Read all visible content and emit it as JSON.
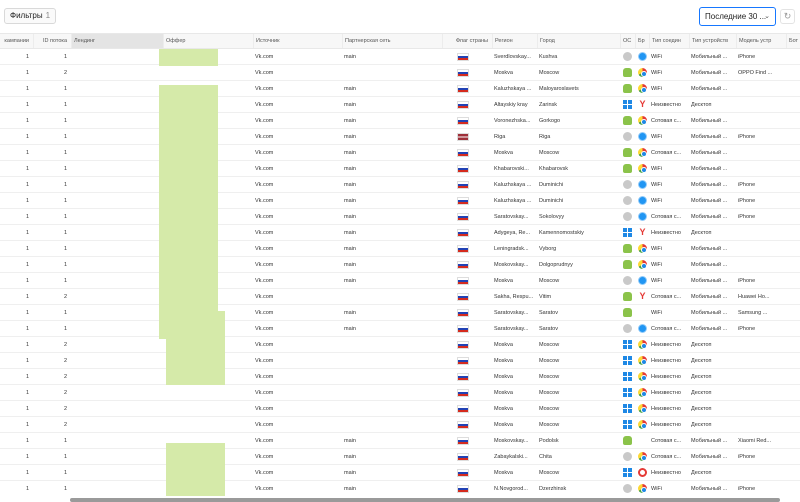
{
  "toolbar": {
    "filters_label": "Фильтры",
    "filters_count": "1",
    "period_value": "Последние 30 ...",
    "colors": {
      "accent": "#1677ff",
      "mask": "#d5eaa9"
    }
  },
  "columns": [
    "кампании",
    "ID потока",
    "Лендинг",
    "Оффер",
    "Источник",
    "Партнерская сеть",
    "Флаг страны",
    "Регион",
    "Город",
    "ОС",
    "Бр",
    "Тип соедин",
    "Тип устройств",
    "Модель устр",
    "Бот"
  ],
  "rows": [
    {
      "c1": "1",
      "c2": "1",
      "src": "Vk.com",
      "net": "main",
      "flag": "ru",
      "region": "Sverdlovskay...",
      "city": "Kushva",
      "os": "apple",
      "br": "safari",
      "conn": "WiFi",
      "dev": "Мобильный ...",
      "model": "iPhone"
    },
    {
      "c1": "1",
      "c2": "2",
      "src": "Vk.com",
      "net": "",
      "flag": "ru",
      "region": "Moskva",
      "city": "Moscow",
      "os": "android",
      "br": "chrome",
      "conn": "WiFi",
      "dev": "Мобильный ...",
      "model": "OPPO Find ..."
    },
    {
      "c1": "1",
      "c2": "1",
      "src": "Vk.com",
      "net": "main",
      "flag": "ru",
      "region": "Kaluzhskaya ...",
      "city": "Maloyaroslavets",
      "os": "android",
      "br": "chrome",
      "conn": "WiFi",
      "dev": "Мобильный ...",
      "model": ""
    },
    {
      "c1": "1",
      "c2": "1",
      "src": "Vk.com",
      "net": "main",
      "flag": "ru",
      "region": "Altayskiy kray",
      "city": "Zarinsk",
      "os": "windows",
      "br": "yandex",
      "conn": "Неизвестно",
      "dev": "Десктоп",
      "model": ""
    },
    {
      "c1": "1",
      "c2": "1",
      "src": "Vk.com",
      "net": "main",
      "flag": "ru",
      "region": "Voronezhska...",
      "city": "Gorkogo",
      "os": "android",
      "br": "chrome",
      "conn": "Сотовая с...",
      "dev": "Мобильный ...",
      "model": ""
    },
    {
      "c1": "1",
      "c2": "1",
      "src": "Vk.com",
      "net": "main",
      "flag": "lv",
      "region": "Riga",
      "city": "Riga",
      "os": "apple",
      "br": "safari",
      "conn": "WiFi",
      "dev": "Мобильный ...",
      "model": "iPhone"
    },
    {
      "c1": "1",
      "c2": "1",
      "src": "Vk.com",
      "net": "main",
      "flag": "ru",
      "region": "Moskva",
      "city": "Moscow",
      "os": "android",
      "br": "chrome",
      "conn": "Сотовая с...",
      "dev": "Мобильный ...",
      "model": ""
    },
    {
      "c1": "1",
      "c2": "1",
      "src": "Vk.com",
      "net": "main",
      "flag": "ru",
      "region": "Khabarovski...",
      "city": "Khabarovsk",
      "os": "android",
      "br": "chrome",
      "conn": "WiFi",
      "dev": "Мобильный ...",
      "model": ""
    },
    {
      "c1": "1",
      "c2": "1",
      "src": "Vk.com",
      "net": "main",
      "flag": "ru",
      "region": "Kaluzhskaya ...",
      "city": "Duminichi",
      "os": "apple",
      "br": "safari",
      "conn": "WiFi",
      "dev": "Мобильный ...",
      "model": "iPhone"
    },
    {
      "c1": "1",
      "c2": "1",
      "src": "Vk.com",
      "net": "main",
      "flag": "ru",
      "region": "Kaluzhskaya ...",
      "city": "Duminichi",
      "os": "apple",
      "br": "safari",
      "conn": "WiFi",
      "dev": "Мобильный ...",
      "model": "iPhone"
    },
    {
      "c1": "1",
      "c2": "1",
      "src": "Vk.com",
      "net": "main",
      "flag": "ru",
      "region": "Saratovskay...",
      "city": "Sokolovyy",
      "os": "apple",
      "br": "safari",
      "conn": "Сотовая с...",
      "dev": "Мобильный ...",
      "model": "iPhone"
    },
    {
      "c1": "1",
      "c2": "1",
      "src": "Vk.com",
      "net": "main",
      "flag": "ru",
      "region": "Adygeya, Re...",
      "city": "Kamennomostskiy",
      "os": "windows",
      "br": "yandex",
      "conn": "Неизвестно",
      "dev": "Десктоп",
      "model": ""
    },
    {
      "c1": "1",
      "c2": "1",
      "src": "Vk.com",
      "net": "main",
      "flag": "ru",
      "region": "Leningradsk...",
      "city": "Vyborg",
      "os": "android",
      "br": "chrome",
      "conn": "WiFi",
      "dev": "Мобильный ...",
      "model": ""
    },
    {
      "c1": "1",
      "c2": "1",
      "src": "Vk.com",
      "net": "main",
      "flag": "ru",
      "region": "Moskovskay...",
      "city": "Dolgoprudnyy",
      "os": "android",
      "br": "chrome",
      "conn": "WiFi",
      "dev": "Мобильный ...",
      "model": ""
    },
    {
      "c1": "1",
      "c2": "1",
      "src": "Vk.com",
      "net": "main",
      "flag": "ru",
      "region": "Moskva",
      "city": "Moscow",
      "os": "apple",
      "br": "safari",
      "conn": "WiFi",
      "dev": "Мобильный ...",
      "model": "iPhone"
    },
    {
      "c1": "1",
      "c2": "2",
      "src": "Vk.com",
      "net": "",
      "flag": "ru",
      "region": "Sakha, Respu...",
      "city": "Vitim",
      "os": "android",
      "br": "yandex",
      "conn": "Сотовая с...",
      "dev": "Мобильный ...",
      "model": "Huawei Ho..."
    },
    {
      "c1": "1",
      "c2": "1",
      "src": "Vk.com",
      "net": "main",
      "flag": "ru",
      "region": "Saratovskay...",
      "city": "Saratov",
      "os": "android",
      "br": "",
      "conn": "WiFi",
      "dev": "Мобильный ...",
      "model": "Samsung ..."
    },
    {
      "c1": "1",
      "c2": "1",
      "src": "Vk.com",
      "net": "main",
      "flag": "ru",
      "region": "Saratovskay...",
      "city": "Saratov",
      "os": "apple",
      "br": "safari",
      "conn": "Сотовая с...",
      "dev": "Мобильный ...",
      "model": "iPhone"
    },
    {
      "c1": "1",
      "c2": "2",
      "src": "Vk.com",
      "net": "",
      "flag": "ru",
      "region": "Moskva",
      "city": "Moscow",
      "os": "windows",
      "br": "chrome",
      "conn": "Неизвестно",
      "dev": "Десктоп",
      "model": ""
    },
    {
      "c1": "1",
      "c2": "2",
      "src": "Vk.com",
      "net": "",
      "flag": "ru",
      "region": "Moskva",
      "city": "Moscow",
      "os": "windows",
      "br": "chrome",
      "conn": "Неизвестно",
      "dev": "Десктоп",
      "model": ""
    },
    {
      "c1": "1",
      "c2": "2",
      "src": "Vk.com",
      "net": "",
      "flag": "ru",
      "region": "Moskva",
      "city": "Moscow",
      "os": "windows",
      "br": "chrome",
      "conn": "Неизвестно",
      "dev": "Десктоп",
      "model": ""
    },
    {
      "c1": "1",
      "c2": "2",
      "src": "Vk.com",
      "net": "",
      "flag": "ru",
      "region": "Moskva",
      "city": "Moscow",
      "os": "windows",
      "br": "chrome",
      "conn": "Неизвестно",
      "dev": "Десктоп",
      "model": ""
    },
    {
      "c1": "1",
      "c2": "2",
      "src": "Vk.com",
      "net": "",
      "flag": "ru",
      "region": "Moskva",
      "city": "Moscow",
      "os": "windows",
      "br": "chrome",
      "conn": "Неизвестно",
      "dev": "Десктоп",
      "model": ""
    },
    {
      "c1": "1",
      "c2": "2",
      "src": "Vk.com",
      "net": "",
      "flag": "ru",
      "region": "Moskva",
      "city": "Moscow",
      "os": "windows",
      "br": "chrome",
      "conn": "Неизвестно",
      "dev": "Десктоп",
      "model": ""
    },
    {
      "c1": "1",
      "c2": "1",
      "src": "Vk.com",
      "net": "main",
      "flag": "ru",
      "region": "Moskovskay...",
      "city": "Podolsk",
      "os": "android",
      "br": "",
      "conn": "Сотовая с...",
      "dev": "Мобильный ...",
      "model": "Xiaomi Red..."
    },
    {
      "c1": "1",
      "c2": "1",
      "src": "Vk.com",
      "net": "main",
      "flag": "ru",
      "region": "Zabaykalski...",
      "city": "Chita",
      "os": "apple",
      "br": "chrome",
      "conn": "Сотовая с...",
      "dev": "Мобильный ...",
      "model": "iPhone"
    },
    {
      "c1": "1",
      "c2": "1",
      "src": "Vk.com",
      "net": "main",
      "flag": "ru",
      "region": "Moskva",
      "city": "Moscow",
      "os": "windows",
      "br": "opera",
      "conn": "Неизвестно",
      "dev": "Десктоп",
      "model": ""
    },
    {
      "c1": "1",
      "c2": "1",
      "src": "Vk.com",
      "net": "main",
      "flag": "ru",
      "region": "N.Novgorod...",
      "city": "Dzerzhinsk",
      "os": "apple",
      "br": "chrome",
      "conn": "WiFi",
      "dev": "Мобильный ...",
      "model": "iPhone"
    }
  ]
}
